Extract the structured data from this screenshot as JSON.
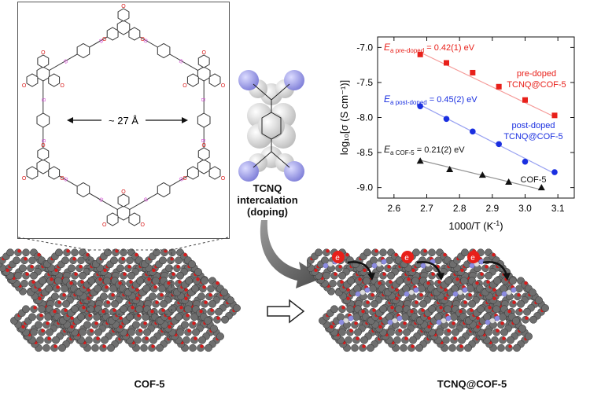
{
  "structure": {
    "pore_label": "~ 27 Å",
    "atom_label_o": "O",
    "atom_label_b": "B"
  },
  "tcnq_label": {
    "line1": "TCNQ",
    "line2": "intercalation",
    "line3": "(doping)"
  },
  "captions": {
    "left": "COF-5",
    "right": "TCNQ@COF-5"
  },
  "electron_label": "e",
  "colors": {
    "frame_atoms": "#6e6e6e",
    "oxygen": "#d81c1c",
    "nitrogen": "#8c8ce0",
    "pre_doped": "#e8201a",
    "post_doped": "#1a2fe0",
    "cof5": "#111111",
    "boron": "#d55cd5"
  },
  "chart_data": {
    "type": "scatter",
    "xlabel": "1000/T (K",
    "xlabel_sup": "-1",
    "xlabel_end": ")",
    "ylabel": "log₁₀[σ (S cm⁻¹)]",
    "xlim": [
      2.55,
      3.15
    ],
    "ylim": [
      -9.15,
      -6.85
    ],
    "xticks": [
      2.6,
      2.7,
      2.8,
      2.9,
      3.0,
      3.1
    ],
    "xtick_labels": [
      "2.6",
      "2.7",
      "2.8",
      "2.9",
      "3.0",
      "3.1"
    ],
    "yticks": [
      -7.0,
      -7.5,
      -8.0,
      -8.5,
      -9.0
    ],
    "ytick_labels": [
      "-7.0",
      "-7.5",
      "-8.0",
      "-8.5",
      "-9.0"
    ],
    "series": [
      {
        "name_line1": "pre-doped",
        "name_line2": "TCNQ@COF-5",
        "color": "#e8201a",
        "marker": "square",
        "x": [
          2.68,
          2.76,
          2.84,
          2.92,
          3.0,
          3.09
        ],
        "y": [
          -7.1,
          -7.22,
          -7.36,
          -7.56,
          -7.75,
          -7.97
        ],
        "fit": [
          [
            2.68,
            -7.07
          ],
          [
            3.09,
            -7.99
          ]
        ],
        "annotation_symbol": "E",
        "annotation_sub": "a pre-doped",
        "annotation_value": " = 0.42(1) eV"
      },
      {
        "name_line1": "post-doped",
        "name_line2": "TCNQ@COF-5",
        "color": "#1a2fe0",
        "marker": "circle",
        "x": [
          2.68,
          2.76,
          2.84,
          2.92,
          3.0,
          3.09
        ],
        "y": [
          -7.84,
          -8.02,
          -8.2,
          -8.38,
          -8.63,
          -8.78
        ],
        "fit": [
          [
            2.68,
            -7.82
          ],
          [
            3.09,
            -8.8
          ]
        ],
        "annotation_symbol": "E",
        "annotation_sub": "a post-doped",
        "annotation_value": " = 0.45(2) eV"
      },
      {
        "name_line1": "COF-5",
        "name_line2": "",
        "color": "#111111",
        "marker": "triangle",
        "x": [
          2.68,
          2.77,
          2.87,
          2.95,
          3.05
        ],
        "y": [
          -8.62,
          -8.74,
          -8.82,
          -8.92,
          -9.0
        ],
        "fit": [
          [
            2.68,
            -8.61
          ],
          [
            3.05,
            -9.03
          ]
        ],
        "annotation_symbol": "E",
        "annotation_sub": "a COF-5",
        "annotation_value": " = 0.21(2) eV"
      }
    ]
  }
}
